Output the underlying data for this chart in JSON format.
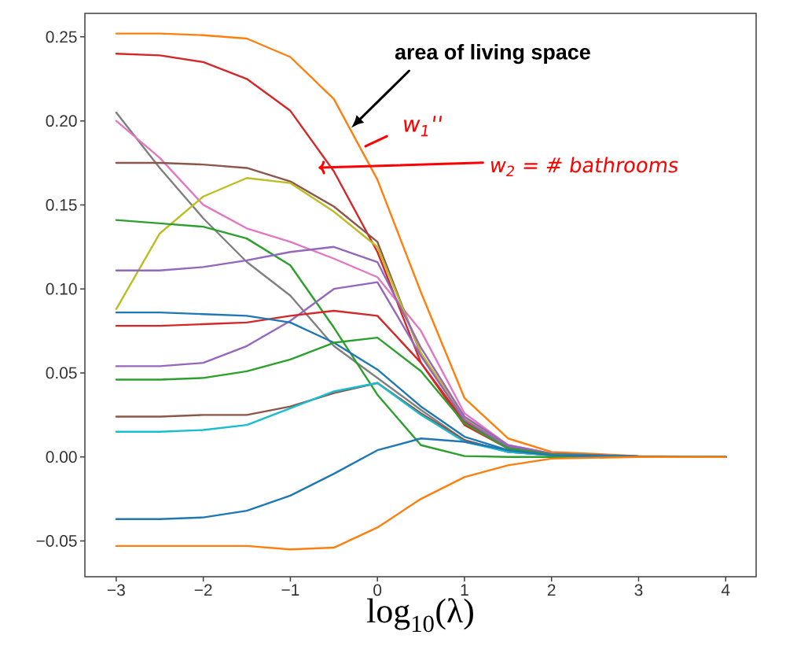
{
  "chart_data": {
    "type": "line",
    "xlabel": "log$_{10}$(λ)",
    "x": [
      -3,
      -2.5,
      -2,
      -1.5,
      -1,
      -0.5,
      0,
      0.5,
      1,
      1.5,
      2,
      3,
      4
    ],
    "series": [
      {
        "color": "#ff7f0e",
        "values": [
          0.252,
          0.252,
          0.251,
          0.249,
          0.238,
          0.213,
          0.165,
          0.098,
          0.035,
          0.011,
          0.003,
          0.0005,
          0
        ]
      },
      {
        "color": "#d62728",
        "values": [
          0.24,
          0.239,
          0.235,
          0.225,
          0.206,
          0.17,
          0.122,
          0.056,
          0.021,
          0.006,
          0.0015,
          0.0003,
          0
        ]
      },
      {
        "color": "#7f7f7f",
        "values": [
          0.205,
          0.172,
          0.142,
          0.116,
          0.096,
          0.066,
          0.047,
          0.028,
          0.01,
          0.003,
          0.001,
          0.0002,
          0
        ]
      },
      {
        "color": "#e377c2",
        "values": [
          0.2,
          0.178,
          0.15,
          0.136,
          0.128,
          0.118,
          0.107,
          0.075,
          0.026,
          0.007,
          0.002,
          0.0003,
          0
        ]
      },
      {
        "color": "#8c564b",
        "values": [
          0.175,
          0.175,
          0.174,
          0.172,
          0.164,
          0.149,
          0.128,
          0.061,
          0.022,
          0.006,
          0.0015,
          0.0003,
          0
        ]
      },
      {
        "color": "#bcbd22",
        "values": [
          0.088,
          0.133,
          0.155,
          0.166,
          0.163,
          0.146,
          0.125,
          0.062,
          0.023,
          0.006,
          null,
          null,
          null
        ]
      },
      {
        "color": "#2ca02c",
        "values": [
          0.141,
          0.139,
          0.137,
          0.13,
          0.114,
          0.077,
          0.037,
          0.007,
          0.0005,
          0,
          0,
          0,
          0
        ]
      },
      {
        "color": "#9467bd",
        "values": [
          0.111,
          0.111,
          0.113,
          0.117,
          0.122,
          0.125,
          0.116,
          0.065,
          0.024,
          0.007,
          0.002,
          0.0003,
          0
        ]
      },
      {
        "color": "#9467bd",
        "values": [
          0.054,
          0.054,
          0.056,
          0.066,
          0.081,
          0.1,
          0.104,
          0.06,
          0.022,
          0.006,
          0.0015,
          0.0003,
          0
        ]
      },
      {
        "color": "#d62728",
        "values": [
          0.078,
          0.078,
          0.079,
          0.08,
          0.084,
          0.087,
          0.084,
          0.056,
          0.019,
          0.005,
          0.0015,
          0.0003,
          0
        ]
      },
      {
        "color": "#1f77b4",
        "values": [
          0.086,
          0.086,
          0.085,
          0.084,
          0.08,
          0.068,
          0.052,
          0.03,
          0.012,
          0.004,
          0.001,
          0.0002,
          0
        ]
      },
      {
        "color": "#2ca02c",
        "values": [
          0.046,
          0.046,
          0.047,
          0.051,
          0.058,
          0.068,
          0.071,
          0.051,
          0.02,
          0.005,
          0.0015,
          0.0003,
          0
        ]
      },
      {
        "color": "#8c564b",
        "values": [
          0.024,
          0.024,
          0.025,
          0.025,
          0.03,
          0.038,
          0.044,
          0.026,
          0.01,
          0.003,
          0.001,
          0.0002,
          0
        ]
      },
      {
        "color": "#17becf",
        "values": [
          0.015,
          0.015,
          0.016,
          0.019,
          0.029,
          0.039,
          0.044,
          0.025,
          0.009,
          0.003,
          0.001,
          0.0002,
          0
        ]
      },
      {
        "color": "#1f77b4",
        "values": [
          -0.037,
          -0.037,
          -0.036,
          -0.032,
          -0.023,
          -0.01,
          0.004,
          0.011,
          0.009,
          0.004,
          0.001,
          0.0002,
          0
        ]
      },
      {
        "color": "#ff7f0e",
        "values": [
          -0.053,
          -0.053,
          -0.053,
          -0.053,
          -0.055,
          -0.054,
          -0.042,
          -0.025,
          -0.012,
          -0.005,
          -0.001,
          0,
          0
        ]
      }
    ],
    "xlim": [
      -3.36,
      4.35
    ],
    "ylim": [
      -0.0713,
      0.264
    ],
    "xticks": [
      {
        "value": -3,
        "label": "−3"
      },
      {
        "value": -2,
        "label": "−2"
      },
      {
        "value": -1,
        "label": "−1"
      },
      {
        "value": 0,
        "label": "0"
      },
      {
        "value": 1,
        "label": "1"
      },
      {
        "value": 2,
        "label": "2"
      },
      {
        "value": 3,
        "label": "3"
      },
      {
        "value": 4,
        "label": "4"
      }
    ],
    "yticks": [
      {
        "value": -0.05,
        "label": "−0.05"
      },
      {
        "value": 0,
        "label": "0.00"
      },
      {
        "value": 0.05,
        "label": "0.05"
      },
      {
        "value": 0.1,
        "label": "0.10"
      },
      {
        "value": 0.15,
        "label": "0.15"
      },
      {
        "value": 0.2,
        "label": "0.20"
      },
      {
        "value": 0.25,
        "label": "0.25"
      }
    ],
    "annotations": [
      "**area of living space**",
      "w$_{1}$''",
      "w$_{2}$ = # bathrooms"
    ],
    "grid": false
  }
}
